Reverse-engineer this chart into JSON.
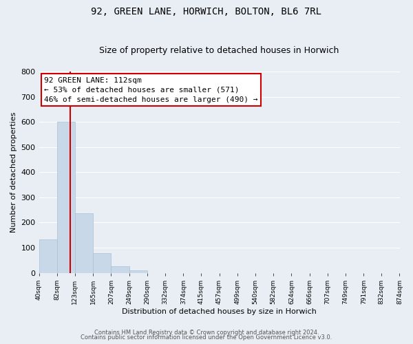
{
  "title": "92, GREEN LANE, HORWICH, BOLTON, BL6 7RL",
  "subtitle": "Size of property relative to detached houses in Horwich",
  "xlabel": "Distribution of detached houses by size in Horwich",
  "ylabel": "Number of detached properties",
  "bar_heights": [
    133,
    601,
    237,
    78,
    25,
    10,
    0,
    0,
    0,
    0,
    0,
    0,
    0,
    0,
    0,
    0,
    0,
    0,
    0,
    0
  ],
  "bin_edges": [
    40,
    82,
    123,
    165,
    207,
    249,
    290,
    332,
    374,
    415,
    457,
    499,
    540,
    582,
    624,
    666,
    707,
    749,
    791,
    832,
    874
  ],
  "tick_labels": [
    "40sqm",
    "82sqm",
    "123sqm",
    "165sqm",
    "207sqm",
    "249sqm",
    "290sqm",
    "332sqm",
    "374sqm",
    "415sqm",
    "457sqm",
    "499sqm",
    "540sqm",
    "582sqm",
    "624sqm",
    "666sqm",
    "707sqm",
    "749sqm",
    "791sqm",
    "832sqm",
    "874sqm"
  ],
  "bar_color": "#c8d8e8",
  "bar_edgecolor": "#a8c0d4",
  "property_line_x": 112,
  "property_line_color": "#cc0000",
  "ylim": [
    0,
    800
  ],
  "yticks": [
    0,
    100,
    200,
    300,
    400,
    500,
    600,
    700,
    800
  ],
  "annotation_title": "92 GREEN LANE: 112sqm",
  "annotation_line1": "← 53% of detached houses are smaller (571)",
  "annotation_line2": "46% of semi-detached houses are larger (490) →",
  "annotation_box_facecolor": "#ffffff",
  "annotation_box_edgecolor": "#cc0000",
  "plot_bg_color": "#e8eef4",
  "fig_bg_color": "#e8eef4",
  "grid_color": "#ffffff",
  "footer1": "Contains HM Land Registry data © Crown copyright and database right 2024.",
  "footer2": "Contains public sector information licensed under the Open Government Licence v3.0.",
  "title_fontsize": 10,
  "subtitle_fontsize": 9,
  "ylabel_fontsize": 8,
  "xlabel_fontsize": 8,
  "ytick_fontsize": 8,
  "xtick_fontsize": 6.5,
  "annotation_fontsize": 8,
  "footer_fontsize": 6
}
